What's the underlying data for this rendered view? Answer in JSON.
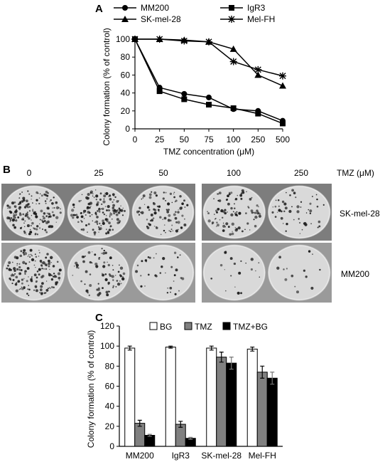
{
  "panel_a": {
    "label": "A",
    "chart_data": {
      "type": "line",
      "categories": [
        "0",
        "25",
        "50",
        "75",
        "100",
        "250",
        "500"
      ],
      "xlabel": "TMZ concentration (μM)",
      "ylabel": "Colony formation (% of control)",
      "ylim": [
        0,
        100
      ],
      "yticks": [
        "0",
        "20",
        "40",
        "60",
        "80",
        "100"
      ],
      "legend_position": "top",
      "series": [
        {
          "name": "MM200",
          "marker": "circle",
          "values": [
            100,
            46,
            39,
            35,
            22,
            20,
            9
          ]
        },
        {
          "name": "IgR3",
          "marker": "square",
          "values": [
            100,
            42,
            33,
            27,
            23,
            17,
            6
          ]
        },
        {
          "name": "SK-mel-28",
          "marker": "triangle",
          "values": [
            100,
            100,
            99,
            97,
            89,
            60,
            48
          ]
        },
        {
          "name": "Mel-FH",
          "marker": "asterisk",
          "values": [
            100,
            100,
            98,
            97,
            75,
            66,
            59
          ]
        }
      ]
    }
  },
  "panel_b": {
    "label": "B",
    "concentrations": [
      "0",
      "25",
      "50",
      "100",
      "250"
    ],
    "tmz_label": "TMZ (μM)",
    "rows": [
      {
        "name": "SK-mel-28",
        "density": [
          1.0,
          0.9,
          0.55,
          0.55,
          0.3
        ]
      },
      {
        "name": "MM200",
        "density": [
          0.9,
          0.45,
          0.2,
          0.12,
          0.08
        ]
      }
    ],
    "colors": {
      "photo_bg": "#8a8a8a",
      "dish": "#d9d9d9",
      "colony": "#1e1e1e"
    }
  },
  "panel_c": {
    "label": "C",
    "chart_data": {
      "type": "bar",
      "categories": [
        "MM200",
        "IgR3",
        "SK-mel-28",
        "Mel-FH"
      ],
      "ylabel": "Colony formation (% of control)",
      "ylim": [
        0,
        120
      ],
      "yticks": [
        "0",
        "20",
        "40",
        "60",
        "80",
        "100",
        "120"
      ],
      "legend_position": "top",
      "series": [
        {
          "name": "BG",
          "color": "#ffffff",
          "values": [
            98,
            99,
            98,
            97
          ],
          "errors": [
            2,
            1,
            2,
            2
          ]
        },
        {
          "name": "TMZ",
          "color": "#808080",
          "values": [
            23,
            22,
            89,
            74
          ],
          "errors": [
            3,
            3,
            5,
            6
          ]
        },
        {
          "name": "TMZ+BG",
          "color": "#000000",
          "values": [
            11,
            8,
            83,
            68
          ],
          "errors": [
            1,
            1,
            6,
            6
          ]
        }
      ]
    }
  }
}
